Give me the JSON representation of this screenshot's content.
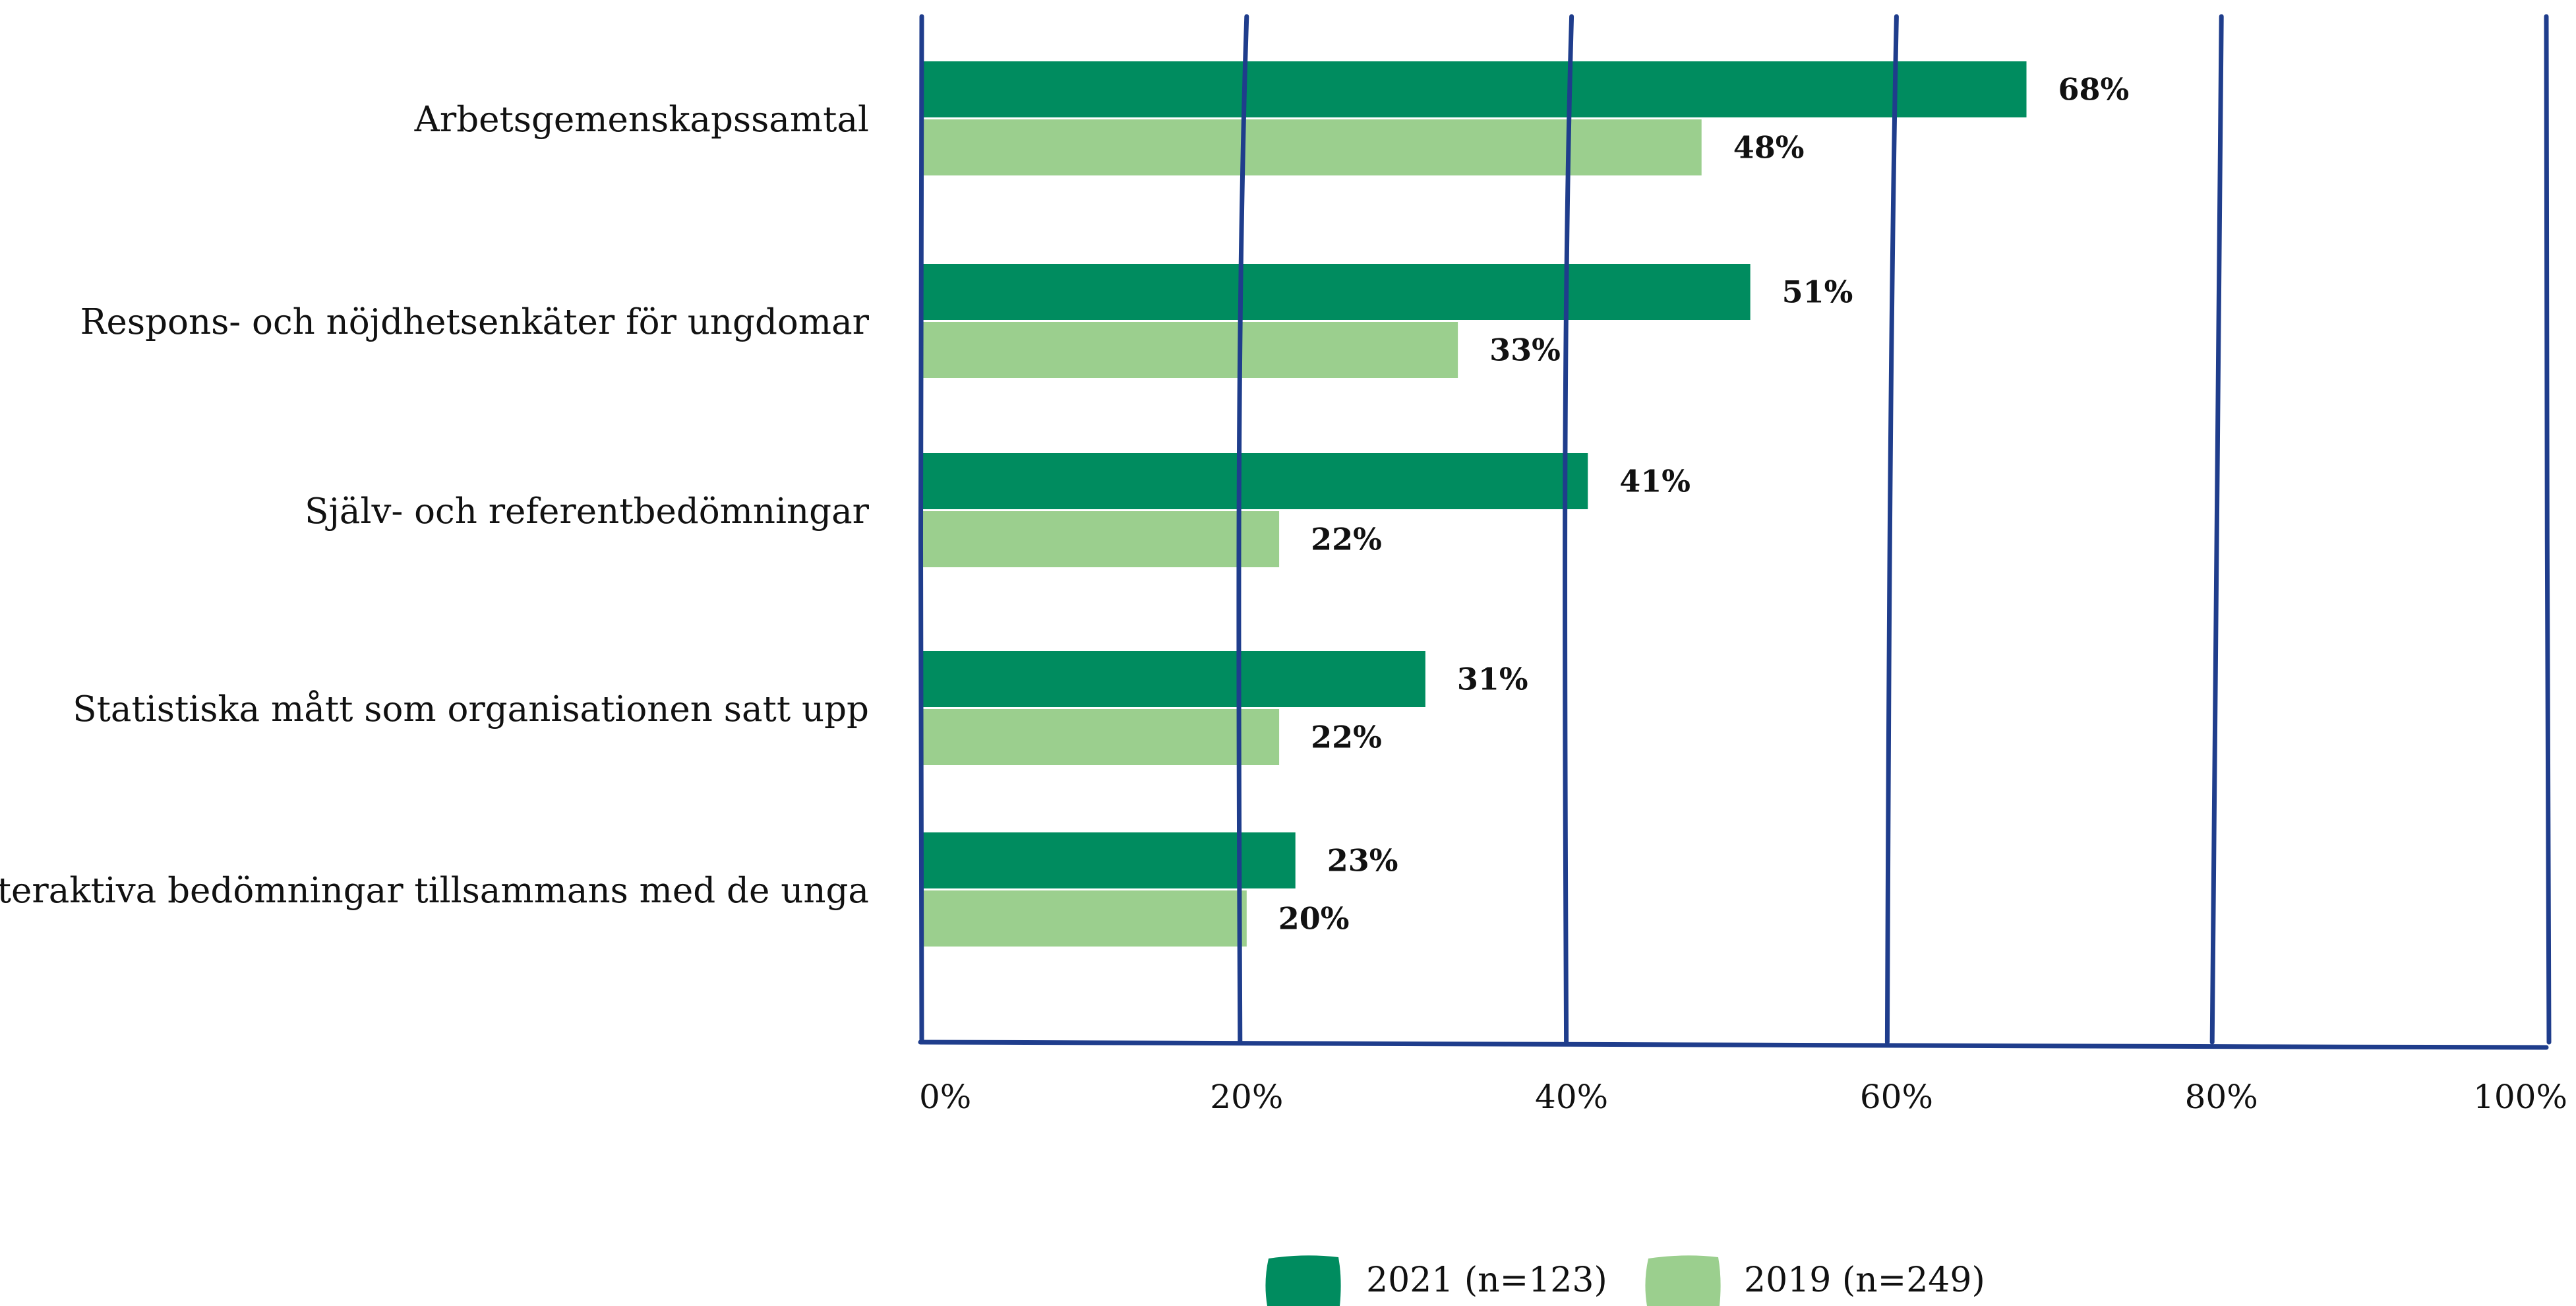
{
  "chart_data": {
    "type": "bar",
    "orientation": "horizontal",
    "title": "",
    "xlabel": "",
    "ylabel": "",
    "xlim": [
      0,
      100
    ],
    "categories": [
      "Arbetsgemenskapssamtal",
      "Respons- och nöjdhetsenkäter för ungdomar",
      "Själv- och referentbedömningar",
      "Statistiska mått som organisationen satt upp",
      "Interaktiva bedömningar tillsammans med de unga"
    ],
    "series": [
      {
        "name": "2021 (n=123)",
        "color": "#008C5F",
        "values": [
          68,
          51,
          41,
          31,
          23
        ],
        "labels": [
          "68%",
          "51%",
          "41%",
          "31%",
          "23%"
        ]
      },
      {
        "name": "2019 (n=249)",
        "color": "#9BCF8E",
        "values": [
          48,
          33,
          22,
          22,
          20
        ],
        "labels": [
          "48%",
          "33%",
          "22%",
          "22%",
          "20%"
        ]
      }
    ],
    "x_ticks": [
      "0%",
      "20%",
      "40%",
      "60%",
      "80%",
      "100%"
    ],
    "grid": true,
    "gridline_color": "#1F3D8C",
    "legend_position": "bottom-center"
  }
}
